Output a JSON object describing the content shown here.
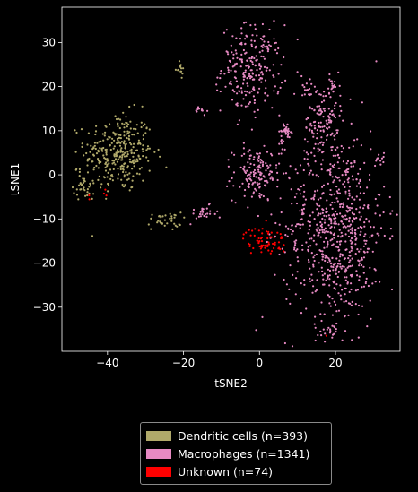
{
  "chart_data": {
    "type": "scatter",
    "title": "",
    "xlabel": "tSNE2",
    "ylabel": "tSNE1",
    "xlim": [
      -52,
      37
    ],
    "ylim": [
      -40,
      38
    ],
    "xticks": [
      -40,
      -20,
      0,
      20
    ],
    "yticks": [
      -30,
      -20,
      -10,
      0,
      10,
      20,
      30
    ],
    "grid": false,
    "legend_position": "bottom",
    "series": [
      {
        "name": "Dendritic cells (n=393)",
        "color": "#b0a96a",
        "count": 393,
        "clusters": [
          {
            "cx": -37,
            "cy": 5,
            "sx": 4.5,
            "sy": 4.5,
            "n": 310
          },
          {
            "cx": -46,
            "cy": -2,
            "sx": 1.5,
            "sy": 1.8,
            "n": 35
          },
          {
            "cx": -25,
            "cy": -10.5,
            "sx": 2.2,
            "sy": 1.0,
            "n": 35
          },
          {
            "cx": -21,
            "cy": 24,
            "sx": 0.6,
            "sy": 0.7,
            "n": 13
          }
        ]
      },
      {
        "name": "Macrophages (n=1341)",
        "color": "#e78ac3",
        "count": 1341,
        "clusters": [
          {
            "cx": -2,
            "cy": 24,
            "sx": 4.0,
            "sy": 5.0,
            "n": 240
          },
          {
            "cx": -1,
            "cy": 0,
            "sx": 3.0,
            "sy": 3.0,
            "n": 140
          },
          {
            "cx": -15,
            "cy": -9,
            "sx": 2.0,
            "sy": 1.0,
            "n": 25
          },
          {
            "cx": -15.5,
            "cy": 14.5,
            "sx": 0.8,
            "sy": 0.6,
            "n": 10
          },
          {
            "cx": 20,
            "cy": -12,
            "sx": 6.5,
            "sy": 11.0,
            "n": 720
          },
          {
            "cx": 17,
            "cy": 12,
            "sx": 2.5,
            "sy": 4.5,
            "n": 120
          },
          {
            "cx": 12,
            "cy": 20,
            "sx": 1.0,
            "sy": 1.0,
            "n": 15
          },
          {
            "cx": 19,
            "cy": 20,
            "sx": 0.6,
            "sy": 1.0,
            "n": 15
          },
          {
            "cx": 31.5,
            "cy": 3.5,
            "sx": 0.6,
            "sy": 0.6,
            "n": 8
          },
          {
            "cx": 18,
            "cy": -35,
            "sx": 1.0,
            "sy": 0.8,
            "n": 10
          },
          {
            "cx": 6,
            "cy": 8,
            "sx": 0.5,
            "sy": 1.5,
            "n": 8
          },
          {
            "cx": 7,
            "cy": 10,
            "sx": 0.6,
            "sy": 0.6,
            "n": 30
          }
        ]
      },
      {
        "name": "Unknown (n=74)",
        "color": "#ff0000",
        "count": 74,
        "clusters": [
          {
            "cx": 1.5,
            "cy": -15,
            "sx": 2.8,
            "sy": 1.6,
            "n": 68
          },
          {
            "cx": -41,
            "cy": -4,
            "sx": 0.5,
            "sy": 0.4,
            "n": 3
          },
          {
            "cx": -45,
            "cy": -5,
            "sx": 0.4,
            "sy": 0.4,
            "n": 2
          },
          {
            "cx": 18,
            "cy": -36,
            "sx": 0.3,
            "sy": 0.3,
            "n": 1
          }
        ]
      }
    ]
  }
}
